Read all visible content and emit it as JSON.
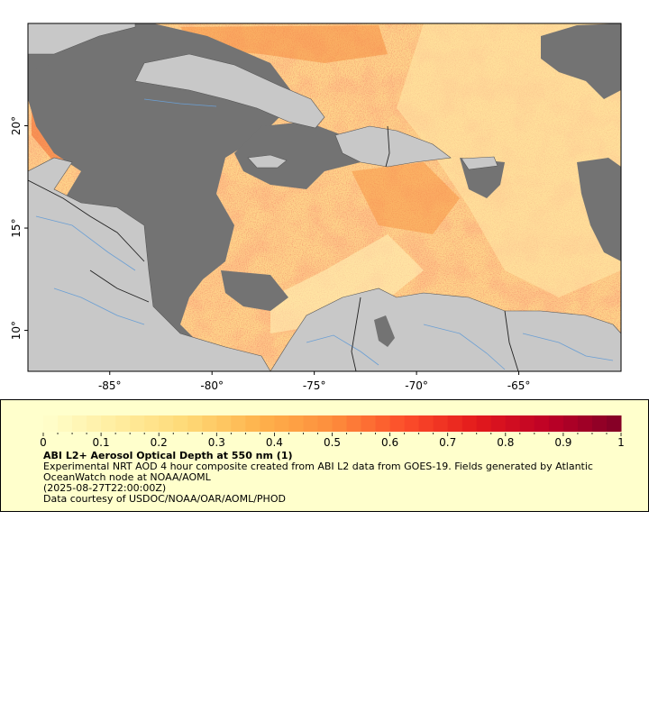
{
  "map": {
    "lon_range": [
      -89,
      -60
    ],
    "lat_range": [
      8,
      25
    ],
    "lon_ticks": [
      {
        "value": -85,
        "label": "-85°"
      },
      {
        "value": -80,
        "label": "-80°"
      },
      {
        "value": -75,
        "label": "-75°"
      },
      {
        "value": -70,
        "label": "-70°"
      },
      {
        "value": -65,
        "label": "-65°"
      }
    ],
    "lat_ticks": [
      {
        "value": 10,
        "label": "10°"
      },
      {
        "value": 15,
        "label": "15°"
      },
      {
        "value": 20,
        "label": "20°"
      }
    ],
    "colors": {
      "land": "#c8c8c8",
      "no_data": "#737373",
      "coast": "#555555",
      "rivers": "#6b9fd4",
      "borders": "#222222",
      "aod_low": "#ffffcc",
      "aod_high": "#800026"
    }
  },
  "legend": {
    "title": "ABI L2+ Aerosol Optical Depth at 550 nm (1)",
    "description": "Experimental NRT AOD 4 hour composite created from ABI L2 data from GOES-19. Fields generated by Atlantic OceanWatch node at NOAA/AOML",
    "timestamp": "(2025-08-27T22:00:00Z)",
    "credit": "Data courtesy of USDOC/NOAA/OAR/AOML/PHOD",
    "colorbar_range": [
      0,
      1
    ],
    "colorbar_ticks": [
      "0",
      "0.1",
      "0.2",
      "0.3",
      "0.4",
      "0.5",
      "0.6",
      "0.7",
      "0.8",
      "0.9",
      "1"
    ],
    "colorbar_stops": [
      "#ffffcc",
      "#ffeda0",
      "#fed976",
      "#feb24c",
      "#fd8d3c",
      "#fc4e2a",
      "#e31a1c",
      "#bd0026",
      "#800026"
    ]
  }
}
